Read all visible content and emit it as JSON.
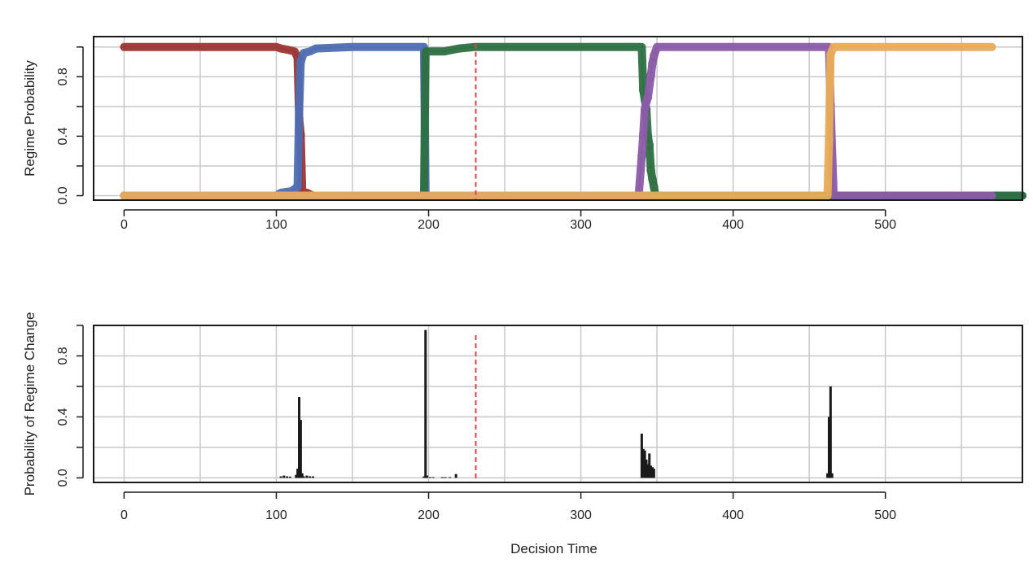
{
  "chart_data": [
    {
      "type": "line",
      "ylabel": "Regime Probability",
      "xlabel": "",
      "xlim": [
        -20,
        590
      ],
      "ylim": [
        -0.03,
        1.07
      ],
      "xticks": [
        0,
        100,
        200,
        300,
        400,
        500
      ],
      "yticks": [
        0.0,
        0.4,
        0.8
      ],
      "ytick_labels": [
        "0.0",
        "0.4",
        "0.8"
      ],
      "grid_x": [
        0,
        50,
        100,
        150,
        200,
        250,
        300,
        350,
        400,
        450,
        500,
        550
      ],
      "grid_y": [
        0.0,
        0.2,
        0.4,
        0.6,
        0.8,
        1.0
      ],
      "vline": {
        "x": 231,
        "color": "#d9454d",
        "style": "dashed"
      },
      "series": [
        {
          "color": "#9b3532",
          "points": [
            [
              0,
              1.0
            ],
            [
              100,
              1.0
            ],
            [
              103,
              0.99
            ],
            [
              108,
              0.98
            ],
            [
              112,
              0.97
            ],
            [
              114,
              0.93
            ],
            [
              115,
              0.52
            ],
            [
              116,
              0.41
            ],
            [
              117,
              0.02
            ],
            [
              120,
              0.02
            ],
            [
              124,
              0.0
            ],
            [
              590,
              0.0
            ]
          ]
        },
        {
          "color": "#4e6db3",
          "points": [
            [
              0,
              0.0
            ],
            [
              100,
              0.0
            ],
            [
              103,
              0.02
            ],
            [
              110,
              0.03
            ],
            [
              114,
              0.06
            ],
            [
              115,
              0.58
            ],
            [
              116,
              0.9
            ],
            [
              118,
              0.96
            ],
            [
              122,
              0.97
            ],
            [
              126,
              0.99
            ],
            [
              150,
              1.0
            ],
            [
              197,
              1.0
            ],
            [
              198,
              0.0
            ],
            [
              220,
              0.0
            ],
            [
              590,
              0.0
            ]
          ]
        },
        {
          "color": "#2d7041",
          "points": [
            [
              0,
              0.0
            ],
            [
              197,
              0.0
            ],
            [
              198,
              0.97
            ],
            [
              210,
              0.97
            ],
            [
              220,
              0.99
            ],
            [
              230,
              1.0
            ],
            [
              340,
              1.0
            ],
            [
              341,
              0.71
            ],
            [
              343,
              0.58
            ],
            [
              344,
              0.4
            ],
            [
              345,
              0.34
            ],
            [
              346,
              0.17
            ],
            [
              347,
              0.11
            ],
            [
              348,
              0.06
            ],
            [
              349,
              0.0
            ],
            [
              590,
              0.0
            ]
          ]
        },
        {
          "color": "#8b5ba8",
          "points": [
            [
              0,
              0.0
            ],
            [
              338,
              0.0
            ],
            [
              340,
              0.27
            ],
            [
              341,
              0.41
            ],
            [
              342,
              0.58
            ],
            [
              343,
              0.63
            ],
            [
              344,
              0.66
            ],
            [
              346,
              0.81
            ],
            [
              347,
              0.89
            ],
            [
              348,
              0.94
            ],
            [
              350,
              1.0
            ],
            [
              463,
              1.0
            ],
            [
              464,
              0.61
            ],
            [
              466,
              0.0
            ],
            [
              570,
              0.0
            ]
          ]
        },
        {
          "color": "#e8ac58",
          "points": [
            [
              0,
              0.0
            ],
            [
              462,
              0.0
            ],
            [
              463,
              0.38
            ],
            [
              464,
              0.95
            ],
            [
              466,
              1.0
            ],
            [
              570,
              1.0
            ]
          ]
        }
      ]
    },
    {
      "type": "bar",
      "xlabel": "Decision Time",
      "ylabel": "Probability of Regime Change",
      "xlim": [
        -20,
        590
      ],
      "ylim": [
        -0.03,
        1.0
      ],
      "xticks": [
        0,
        100,
        200,
        300,
        400,
        500
      ],
      "yticks": [
        0.0,
        0.4,
        0.8
      ],
      "ytick_labels": [
        "0.0",
        "0.4",
        "0.8"
      ],
      "grid_x": [
        0,
        50,
        100,
        150,
        200,
        250,
        300,
        350,
        400,
        450,
        500,
        550
      ],
      "grid_y": [
        0.0,
        0.2,
        0.4,
        0.6,
        0.8,
        1.0
      ],
      "vline": {
        "x": 231,
        "color": "#d9454d",
        "style": "dashed"
      },
      "bar_color": "#1a1a1a",
      "x": [
        103,
        105,
        107,
        109,
        113,
        114,
        115,
        116,
        117,
        118,
        120,
        122,
        124,
        197,
        198,
        199,
        201,
        203,
        209,
        211,
        214,
        218,
        340,
        341,
        342,
        343,
        344,
        345,
        346,
        347,
        348,
        462,
        463,
        464,
        465
      ],
      "values": [
        0.01,
        0.015,
        0.01,
        0.008,
        0.02,
        0.06,
        0.53,
        0.38,
        0.03,
        0.01,
        0.015,
        0.01,
        0.01,
        0.01,
        0.97,
        0.015,
        0.005,
        0.005,
        0.005,
        0.005,
        0.005,
        0.025,
        0.29,
        0.19,
        0.18,
        0.12,
        0.09,
        0.16,
        0.08,
        0.07,
        0.06,
        0.03,
        0.4,
        0.6,
        0.03
      ]
    }
  ]
}
